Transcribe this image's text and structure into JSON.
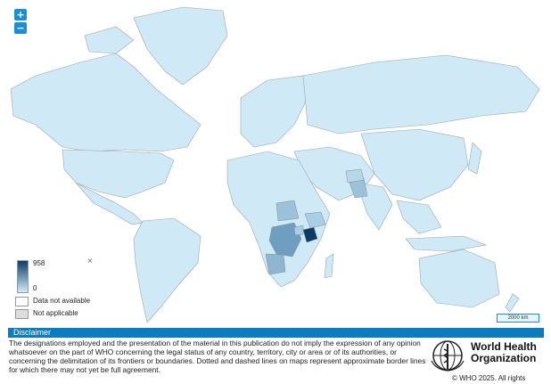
{
  "zoom": {
    "in_label": "+",
    "out_label": "−"
  },
  "legend": {
    "max": "958",
    "min": "0",
    "close_glyph": "×",
    "no_data": "Data not available",
    "not_applicable": "Not applicable",
    "scale_color_high": "#0d3b66",
    "scale_color_low": "#cfeaf6"
  },
  "scale_bar": "2000 km",
  "disclaimer": {
    "title": "Disclaimer",
    "text": "The designations employed and the presentation of the material in this publication do not imply the expression of any opinion whatsoever on the part of WHO concerning the legal status of any country, territory, city or area or of its authorities, or concerning the delimitation of its frontiers or boundaries. Dotted and dashed lines on maps represent approximate border lines for which there may not yet be full agreement."
  },
  "org": {
    "line1": "World Health",
    "line2": "Organization",
    "copyright": "© WHO 2025. All rights"
  },
  "colors": {
    "land": "#cfeaf6",
    "border": "#9aa6ae",
    "accent": "#0a7cc1"
  }
}
